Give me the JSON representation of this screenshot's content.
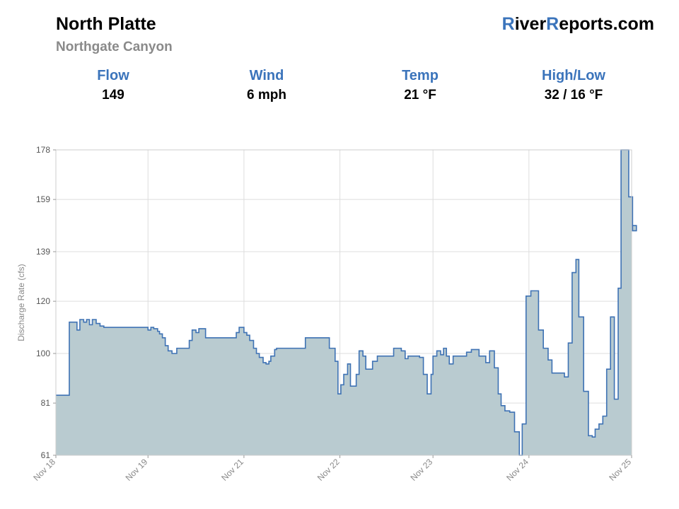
{
  "header": {
    "title": "North Platte",
    "subtitle": "Northgate Canyon",
    "brand_r1": "R",
    "brand_mid": "iver",
    "brand_r2": "R",
    "brand_end": "eports.com"
  },
  "stats": [
    {
      "label": "Flow",
      "value": "149"
    },
    {
      "label": "Wind",
      "value": "6 mph"
    },
    {
      "label": "Temp",
      "value": "21 °F"
    },
    {
      "label": "High/Low",
      "value": "32 / 16 °F"
    }
  ],
  "colors": {
    "accent": "#3b74bb",
    "line": "#3e72b4",
    "fill": "#b9cbd0",
    "grid": "#dddddd"
  },
  "chart_data": {
    "type": "area",
    "step": true,
    "ylabel": "Discharge Rate (cfs)",
    "ylim": [
      61,
      178
    ],
    "yticks": [
      61,
      81,
      100,
      120,
      139,
      159,
      178
    ],
    "xlim": [
      0,
      6
    ],
    "xticks": [
      {
        "value": 0,
        "label": "Nov 18"
      },
      {
        "value": 0.96,
        "label": "Nov 19"
      },
      {
        "value": 1.96,
        "label": "Nov 21"
      },
      {
        "value": 2.96,
        "label": "Nov 22"
      },
      {
        "value": 3.93,
        "label": "Nov 23"
      },
      {
        "value": 4.93,
        "label": "Nov 24"
      },
      {
        "value": 6,
        "label": "Nov 25"
      }
    ],
    "grid": true,
    "points": [
      [
        0,
        84
      ],
      [
        0.14,
        112
      ],
      [
        0.22,
        109
      ],
      [
        0.25,
        113
      ],
      [
        0.29,
        112
      ],
      [
        0.32,
        113
      ],
      [
        0.35,
        111
      ],
      [
        0.38,
        113
      ],
      [
        0.42,
        111.5
      ],
      [
        0.46,
        110.5
      ],
      [
        0.5,
        110
      ],
      [
        0.96,
        109
      ],
      [
        0.99,
        110
      ],
      [
        1.02,
        109.5
      ],
      [
        1.06,
        108.5
      ],
      [
        1.08,
        107.5
      ],
      [
        1.11,
        106
      ],
      [
        1.14,
        103
      ],
      [
        1.17,
        101
      ],
      [
        1.21,
        100
      ],
      [
        1.26,
        102
      ],
      [
        1.39,
        105
      ],
      [
        1.42,
        109
      ],
      [
        1.46,
        108
      ],
      [
        1.49,
        109.5
      ],
      [
        1.56,
        106
      ],
      [
        1.88,
        108
      ],
      [
        1.91,
        110
      ],
      [
        1.96,
        108
      ],
      [
        1.99,
        107
      ],
      [
        2.02,
        105
      ],
      [
        2.06,
        102
      ],
      [
        2.09,
        100
      ],
      [
        2.12,
        98.5
      ],
      [
        2.16,
        96.5
      ],
      [
        2.19,
        96
      ],
      [
        2.22,
        97
      ],
      [
        2.24,
        99
      ],
      [
        2.28,
        101.5
      ],
      [
        2.3,
        102
      ],
      [
        2.6,
        106
      ],
      [
        2.85,
        102
      ],
      [
        2.91,
        97
      ],
      [
        2.94,
        84.5
      ],
      [
        2.97,
        88
      ],
      [
        3.0,
        92
      ],
      [
        3.04,
        96
      ],
      [
        3.07,
        87.5
      ],
      [
        3.13,
        92
      ],
      [
        3.16,
        101
      ],
      [
        3.2,
        99
      ],
      [
        3.23,
        94
      ],
      [
        3.3,
        97
      ],
      [
        3.35,
        99
      ],
      [
        3.52,
        102
      ],
      [
        3.6,
        101
      ],
      [
        3.64,
        98
      ],
      [
        3.67,
        99
      ],
      [
        3.79,
        98.5
      ],
      [
        3.83,
        92
      ],
      [
        3.87,
        84.5
      ],
      [
        3.91,
        92
      ],
      [
        3.93,
        99
      ],
      [
        3.97,
        101
      ],
      [
        4.01,
        99.5
      ],
      [
        4.04,
        102
      ],
      [
        4.07,
        99
      ],
      [
        4.1,
        96
      ],
      [
        4.14,
        99
      ],
      [
        4.28,
        100.5
      ],
      [
        4.33,
        101.5
      ],
      [
        4.41,
        99
      ],
      [
        4.48,
        96.5
      ],
      [
        4.52,
        101
      ],
      [
        4.57,
        94.5
      ],
      [
        4.61,
        84.5
      ],
      [
        4.64,
        80
      ],
      [
        4.68,
        78
      ],
      [
        4.73,
        77.5
      ],
      [
        4.78,
        70
      ],
      [
        4.83,
        59
      ],
      [
        4.86,
        73
      ],
      [
        4.9,
        122
      ],
      [
        4.95,
        124
      ],
      [
        5.03,
        109
      ],
      [
        5.08,
        102
      ],
      [
        5.13,
        97.5
      ],
      [
        5.17,
        92.5
      ],
      [
        5.3,
        91
      ],
      [
        5.34,
        104
      ],
      [
        5.38,
        131
      ],
      [
        5.42,
        136
      ],
      [
        5.45,
        114
      ],
      [
        5.5,
        85.5
      ],
      [
        5.55,
        68.5
      ],
      [
        5.59,
        68
      ],
      [
        5.62,
        71
      ],
      [
        5.66,
        73
      ],
      [
        5.7,
        76
      ],
      [
        5.74,
        94
      ],
      [
        5.78,
        114
      ],
      [
        5.82,
        82.5
      ],
      [
        5.86,
        125
      ],
      [
        5.89,
        178
      ],
      [
        5.97,
        160
      ],
      [
        6.01,
        147
      ],
      [
        6.05,
        149
      ]
    ]
  }
}
